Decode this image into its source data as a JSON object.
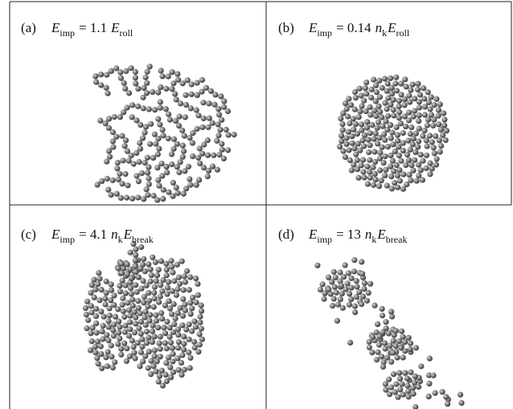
{
  "panels": [
    {
      "tag": "(a)",
      "label": [
        {
          "text": "E",
          "style": "italic"
        },
        {
          "text": "imp",
          "style": "sub"
        },
        {
          "text": "= 1.1",
          "style": "normal"
        },
        {
          "text": "E",
          "style": "italic"
        },
        {
          "text": "roll",
          "style": "sub"
        }
      ]
    },
    {
      "tag": "(b)",
      "label": [
        {
          "text": "E",
          "style": "italic"
        },
        {
          "text": "imp",
          "style": "sub"
        },
        {
          "text": "= 0.14",
          "style": "normal"
        },
        {
          "text": "n",
          "style": "italic"
        },
        {
          "text": "k",
          "style": "sub"
        },
        {
          "text": "E",
          "style": "italic"
        },
        {
          "text": "roll",
          "style": "sub"
        }
      ]
    },
    {
      "tag": "(c)",
      "label": [
        {
          "text": "E",
          "style": "italic"
        },
        {
          "text": "imp",
          "style": "sub"
        },
        {
          "text": "= 4.1",
          "style": "normal"
        },
        {
          "text": "n",
          "style": "italic"
        },
        {
          "text": "k",
          "style": "sub"
        },
        {
          "text": "E",
          "style": "italic"
        },
        {
          "text": "break",
          "style": "sub"
        }
      ]
    },
    {
      "tag": "(d)",
      "label": [
        {
          "text": "E",
          "style": "italic"
        },
        {
          "text": "imp",
          "style": "sub"
        },
        {
          "text": "= 13",
          "style": "normal"
        },
        {
          "text": "n",
          "style": "italic"
        },
        {
          "text": "k",
          "style": "sub"
        },
        {
          "text": "E",
          "style": "italic"
        },
        {
          "text": "break",
          "style": "sub"
        }
      ]
    }
  ]
}
